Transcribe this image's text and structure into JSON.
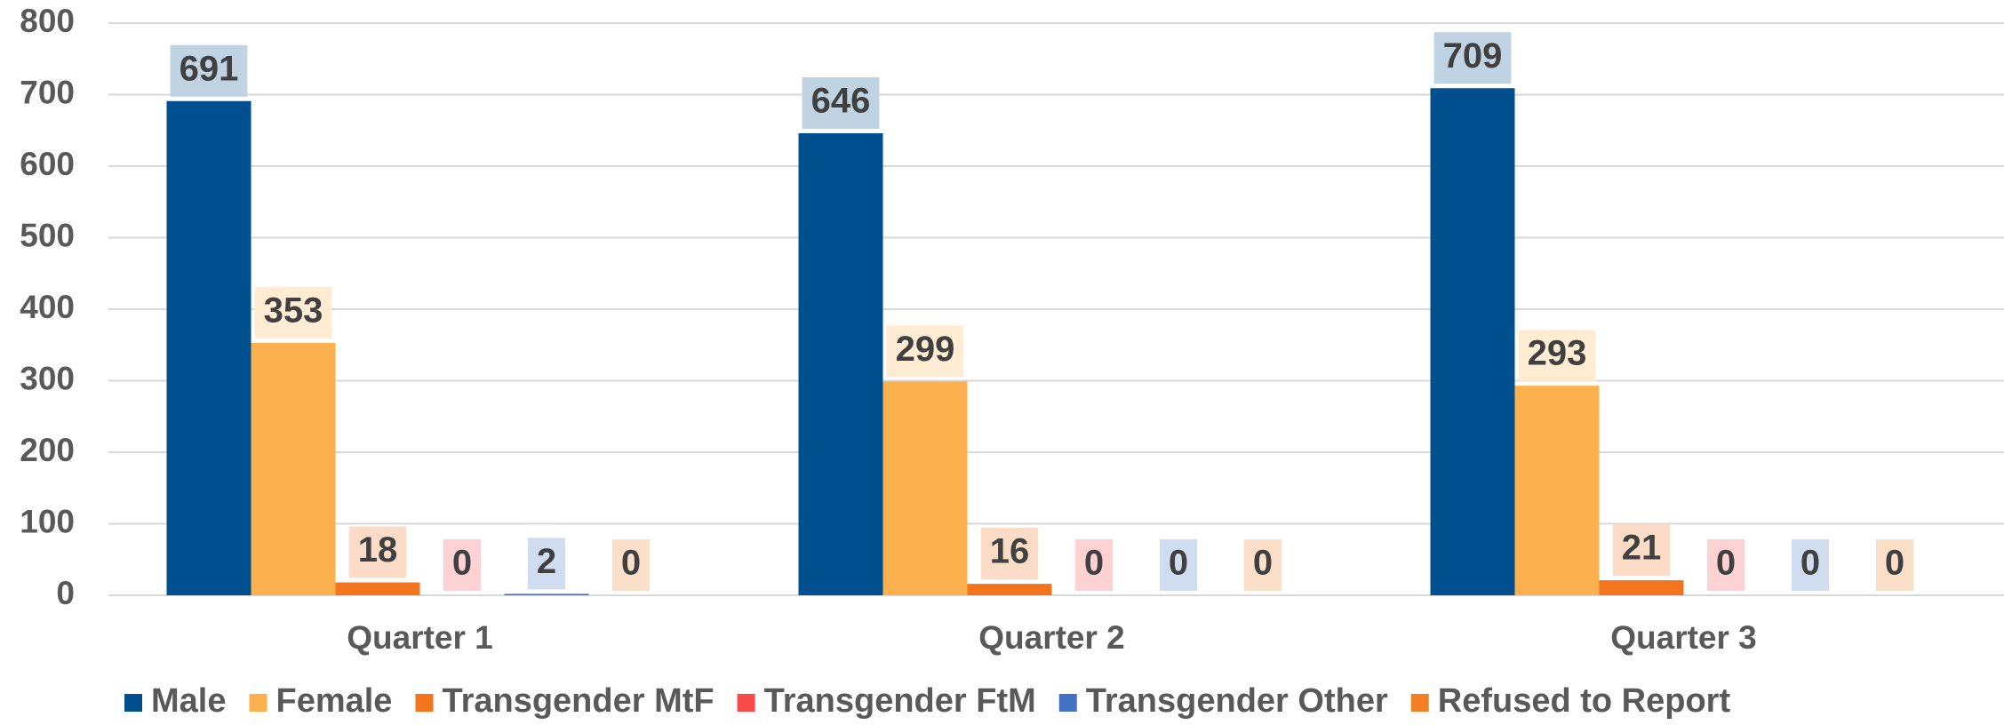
{
  "chart_data": {
    "type": "bar",
    "categories": [
      "Quarter 1",
      "Quarter 2",
      "Quarter 3"
    ],
    "series": [
      {
        "name": "Male",
        "color": "#00508f",
        "values": [
          691,
          646,
          709
        ]
      },
      {
        "name": "Female",
        "color": "#fdb14e",
        "values": [
          353,
          299,
          293
        ]
      },
      {
        "name": "Transgender MtF",
        "color": "#f2741c",
        "values": [
          18,
          16,
          21
        ]
      },
      {
        "name": "Transgender FtM",
        "color": "#f94a4a",
        "values": [
          0,
          0,
          0
        ]
      },
      {
        "name": "Transgender Other",
        "color": "#4472c4",
        "values": [
          2,
          0,
          0
        ]
      },
      {
        "name": "Refused to Report",
        "color": "#f47e22",
        "values": [
          0,
          0,
          0
        ]
      }
    ],
    "ylim": [
      0,
      800
    ],
    "yticks": [
      0,
      100,
      200,
      300,
      400,
      500,
      600,
      700,
      800
    ],
    "grid": true,
    "legend": "bottom"
  }
}
